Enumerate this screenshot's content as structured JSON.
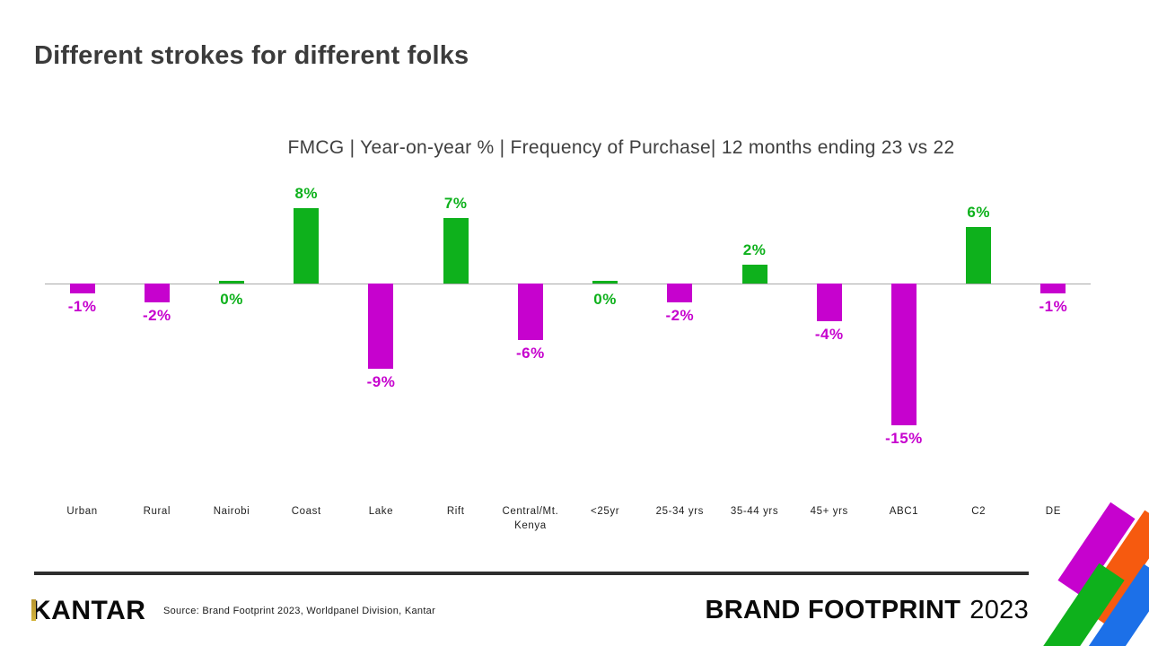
{
  "slide": {
    "title": "Different strokes for different folks",
    "footer": {
      "logo_text": "KANTAR",
      "source": "Source: Brand Footprint 2023, Worldpanel Division, Kantar",
      "brand_bold": "BRAND FOOTPRINT",
      "brand_year": "2023"
    }
  },
  "chart_data": {
    "type": "bar",
    "title": "FMCG | Year-on-year % | Frequency of Purchase| 12 months ending 23 vs 22",
    "categories": [
      "Urban",
      "Rural",
      "Nairobi",
      "Coast",
      "Lake",
      "Rift",
      "Central/Mt. Kenya",
      "<25yr",
      "25-34 yrs",
      "35-44 yrs",
      "45+ yrs",
      "ABC1",
      "C2",
      "DE"
    ],
    "values": [
      -1,
      -2,
      0,
      8,
      -9,
      7,
      -6,
      0,
      -2,
      2,
      -4,
      -15,
      6,
      -1
    ],
    "labels": [
      "-1%",
      "-2%",
      "0%",
      "8%",
      "-9%",
      "7%",
      "-6%",
      "0%",
      "-2%",
      "2%",
      "-4%",
      "-15%",
      "6%",
      "-1%"
    ],
    "ylim": [
      -17,
      10
    ],
    "grid": false,
    "legend": null,
    "positive_color": "#0EB11C",
    "negative_color": "#C602CE",
    "axis_color": "#A9A9A9"
  },
  "decor": {
    "gold": "#B6952F",
    "shapes": [
      {
        "name": "stripe-magenta",
        "color": "#C602CE"
      },
      {
        "name": "stripe-orange",
        "color": "#F65A0F"
      },
      {
        "name": "stripe-green",
        "color": "#0EB11C"
      },
      {
        "name": "stripe-blue",
        "color": "#1C70E8"
      }
    ]
  }
}
